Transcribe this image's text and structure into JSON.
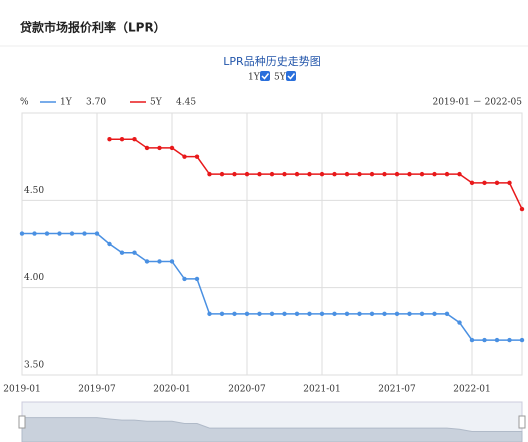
{
  "header": {
    "title": "贷款市场报价利率（LPR）"
  },
  "chart_data": {
    "type": "line",
    "title": "LPR品种历史走势图",
    "y_unit": "%",
    "date_range": "2019-01 － 2022-05",
    "x": [
      "2019-01",
      "2019-02",
      "2019-03",
      "2019-04",
      "2019-05",
      "2019-06",
      "2019-07",
      "2019-08",
      "2019-09",
      "2019-10",
      "2019-11",
      "2019-12",
      "2020-01",
      "2020-02",
      "2020-03",
      "2020-04",
      "2020-05",
      "2020-06",
      "2020-07",
      "2020-08",
      "2020-09",
      "2020-10",
      "2020-11",
      "2020-12",
      "2021-01",
      "2021-02",
      "2021-03",
      "2021-04",
      "2021-05",
      "2021-06",
      "2021-07",
      "2021-08",
      "2021-09",
      "2021-10",
      "2021-11",
      "2021-12",
      "2022-01",
      "2022-02",
      "2022-03",
      "2022-04",
      "2022-05"
    ],
    "xticks": [
      "2019-01",
      "2019-07",
      "2020-01",
      "2020-07",
      "2021-01",
      "2021-07",
      "2022-01"
    ],
    "series": [
      {
        "name": "1Y",
        "color": "#4a90e2",
        "legend_value": "3.70",
        "values": [
          4.31,
          4.31,
          4.31,
          4.31,
          4.31,
          4.31,
          4.31,
          4.25,
          4.2,
          4.2,
          4.15,
          4.15,
          4.15,
          4.05,
          4.05,
          3.85,
          3.85,
          3.85,
          3.85,
          3.85,
          3.85,
          3.85,
          3.85,
          3.85,
          3.85,
          3.85,
          3.85,
          3.85,
          3.85,
          3.85,
          3.85,
          3.85,
          3.85,
          3.85,
          3.85,
          3.8,
          3.7,
          3.7,
          3.7,
          3.7,
          3.7
        ]
      },
      {
        "name": "5Y",
        "color": "#e8191b",
        "legend_value": "4.45",
        "values": [
          null,
          null,
          null,
          null,
          null,
          null,
          null,
          4.85,
          4.85,
          4.85,
          4.8,
          4.8,
          4.8,
          4.75,
          4.75,
          4.65,
          4.65,
          4.65,
          4.65,
          4.65,
          4.65,
          4.65,
          4.65,
          4.65,
          4.65,
          4.65,
          4.65,
          4.65,
          4.65,
          4.65,
          4.65,
          4.65,
          4.65,
          4.65,
          4.65,
          4.65,
          4.6,
          4.6,
          4.6,
          4.6,
          4.45
        ]
      }
    ],
    "ylim": [
      3.5,
      5.0
    ],
    "yticks": [
      {
        "value": 3.5,
        "label": "3.50"
      },
      {
        "value": 4.0,
        "label": "4.00"
      },
      {
        "value": 4.5,
        "label": "4.50"
      }
    ],
    "grid": true
  }
}
